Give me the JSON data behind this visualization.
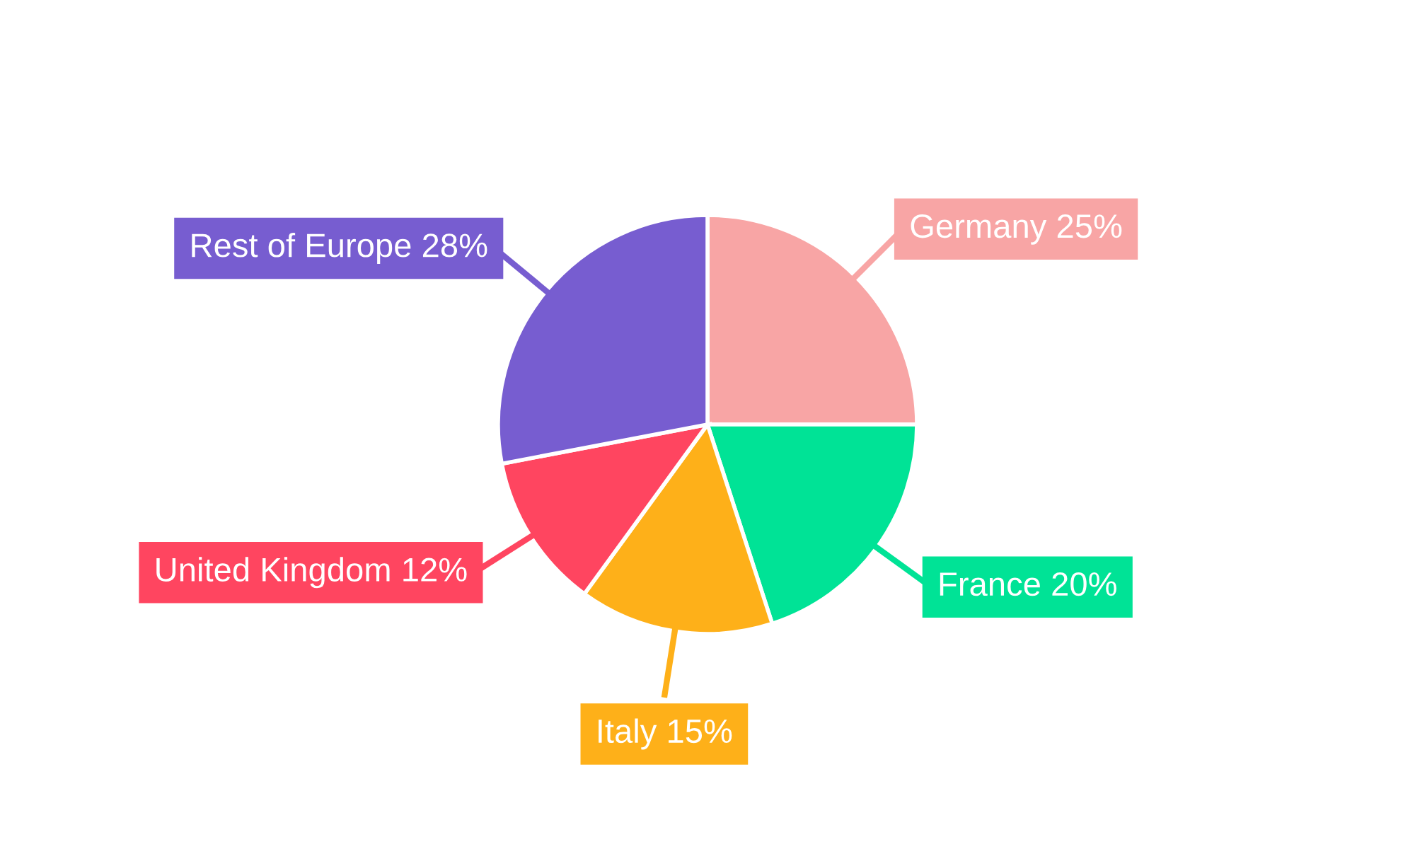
{
  "chart_data": {
    "type": "pie",
    "categories": [
      "Germany 25%",
      "France 20%",
      "Italy 15%",
      "United Kingdom 12%",
      "Rest of Europe 28%"
    ],
    "values": [
      25,
      20,
      15,
      12,
      28
    ],
    "colors": [
      "#f8a5a5",
      "#00e396",
      "#feb019",
      "#ff4560",
      "#775dd0"
    ],
    "legend": false
  }
}
